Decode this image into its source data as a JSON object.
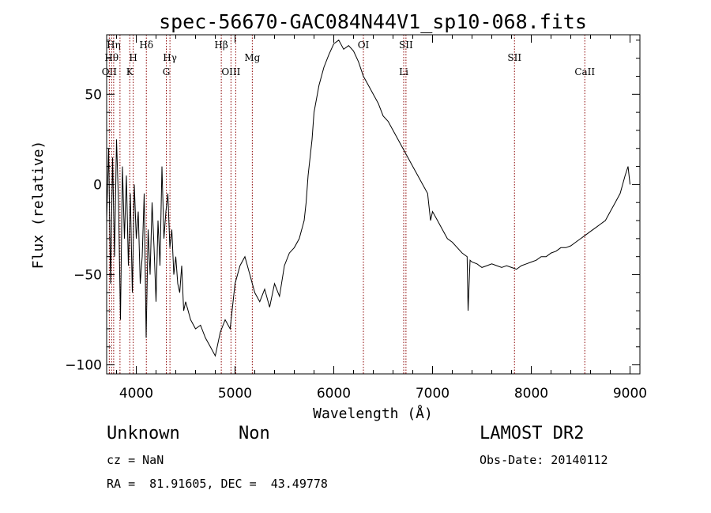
{
  "chart_data": {
    "type": "line",
    "title": "spec-56670-GAC084N44V1_sp10-068.fits",
    "xlabel": "Wavelength (Å)",
    "ylabel": "Flux (relative)",
    "xlim": [
      3700,
      9100
    ],
    "ylim": [
      -105,
      83
    ],
    "x_ticks": [
      4000,
      5000,
      6000,
      7000,
      8000,
      9000
    ],
    "y_ticks": [
      -100,
      -50,
      0,
      50
    ],
    "x_tick_labels": [
      "4000",
      "5000",
      "6000",
      "7000",
      "8000",
      "9000"
    ],
    "y_tick_labels": [
      "−100",
      "−50",
      "0",
      "50"
    ],
    "grid": false,
    "series": [
      {
        "x": [
          3700,
          3720,
          3740,
          3760,
          3780,
          3800,
          3820,
          3840,
          3860,
          3880,
          3900,
          3920,
          3940,
          3960,
          3980,
          4000,
          4020,
          4040,
          4060,
          4080,
          4100,
          4120,
          4140,
          4160,
          4180,
          4200,
          4220,
          4240,
          4260,
          4280,
          4300,
          4320,
          4340,
          4360,
          4380,
          4400,
          4420,
          4440,
          4460,
          4480,
          4500,
          4550,
          4600,
          4650,
          4700,
          4750,
          4800,
          4850,
          4900,
          4950,
          5000,
          5050,
          5100,
          5150,
          5200,
          5250,
          5300,
          5350,
          5400,
          5450,
          5500,
          5550,
          5600,
          5650,
          5700,
          5720,
          5740,
          5760,
          5780,
          5800,
          5850,
          5900,
          5950,
          6000,
          6050,
          6100,
          6150,
          6200,
          6250,
          6300,
          6350,
          6400,
          6450,
          6500,
          6550,
          6600,
          6650,
          6700,
          6750,
          6800,
          6850,
          6900,
          6950,
          6960,
          6980,
          7000,
          7050,
          7100,
          7150,
          7200,
          7250,
          7300,
          7350,
          7360,
          7380,
          7400,
          7450,
          7500,
          7550,
          7600,
          7650,
          7700,
          7750,
          7800,
          7850,
          7900,
          7950,
          8000,
          8050,
          8100,
          8150,
          8200,
          8250,
          8300,
          8350,
          8400,
          8450,
          8500,
          8550,
          8600,
          8650,
          8700,
          8750,
          8800,
          8850,
          8900,
          8950,
          8980,
          9000
        ],
        "y": [
          -20,
          20,
          -55,
          15,
          -40,
          25,
          -10,
          -75,
          10,
          -30,
          5,
          -45,
          -5,
          -60,
          0,
          -30,
          -15,
          -55,
          -40,
          -5,
          -85,
          -25,
          -50,
          -10,
          -35,
          -65,
          -20,
          -45,
          10,
          -30,
          -15,
          -5,
          -35,
          -25,
          -50,
          -40,
          -55,
          -60,
          -45,
          -70,
          -65,
          -75,
          -80,
          -78,
          -85,
          -90,
          -95,
          -82,
          -75,
          -80,
          -55,
          -45,
          -40,
          -50,
          -60,
          -65,
          -58,
          -68,
          -55,
          -62,
          -45,
          -38,
          -35,
          -30,
          -20,
          -10,
          5,
          15,
          25,
          40,
          55,
          65,
          72,
          78,
          80,
          75,
          77,
          74,
          68,
          60,
          55,
          50,
          45,
          38,
          35,
          30,
          25,
          20,
          15,
          10,
          5,
          0,
          -5,
          -10,
          -20,
          -15,
          -20,
          -25,
          -30,
          -32,
          -35,
          -38,
          -40,
          -70,
          -42,
          -43,
          -44,
          -46,
          -45,
          -44,
          -45,
          -46,
          -45,
          -46,
          -47,
          -45,
          -44,
          -43,
          -42,
          -40,
          -40,
          -38,
          -37,
          -35,
          -35,
          -34,
          -32,
          -30,
          -28,
          -26,
          -24,
          -22,
          -20,
          -15,
          -10,
          -5,
          5,
          10,
          0
        ]
      }
    ],
    "line_markers": [
      {
        "x": 3727,
        "label": "OII",
        "row": 3
      },
      {
        "x": 3750,
        "label": "Hθ",
        "row": 2
      },
      {
        "x": 3771,
        "label": "Hη",
        "row": 1
      },
      {
        "x": 3835,
        "label": "",
        "row": 1
      },
      {
        "x": 3934,
        "label": "K",
        "row": 3
      },
      {
        "x": 3969,
        "label": "H",
        "row": 2
      },
      {
        "x": 4102,
        "label": "Hδ",
        "row": 1
      },
      {
        "x": 4304,
        "label": "G",
        "row": 3
      },
      {
        "x": 4341,
        "label": "Hγ",
        "row": 2
      },
      {
        "x": 4861,
        "label": "Hβ",
        "row": 1
      },
      {
        "x": 4959,
        "label": "OIII",
        "row": 3
      },
      {
        "x": 5007,
        "label": "",
        "row": 3
      },
      {
        "x": 5175,
        "label": "Mg",
        "row": 2
      },
      {
        "x": 6300,
        "label": "OI",
        "row": 1
      },
      {
        "x": 6708,
        "label": "Li",
        "row": 3
      },
      {
        "x": 6731,
        "label": "SII",
        "row": 1
      },
      {
        "x": 7830,
        "label": "SII",
        "row": 2
      },
      {
        "x": 8542,
        "label": "CaII",
        "row": 3
      }
    ]
  },
  "info": {
    "object_class": "Unknown",
    "object_subclass": "Non",
    "survey": "LAMOST DR2",
    "cz": "cz = NaN",
    "obs_date": "Obs-Date: 20140112",
    "radec": "RA =  81.91605, DEC =  43.49778"
  },
  "colors": {
    "spectrum": "#000000",
    "marker": "#8b0000",
    "axes": "#000000",
    "background": "#ffffff"
  }
}
